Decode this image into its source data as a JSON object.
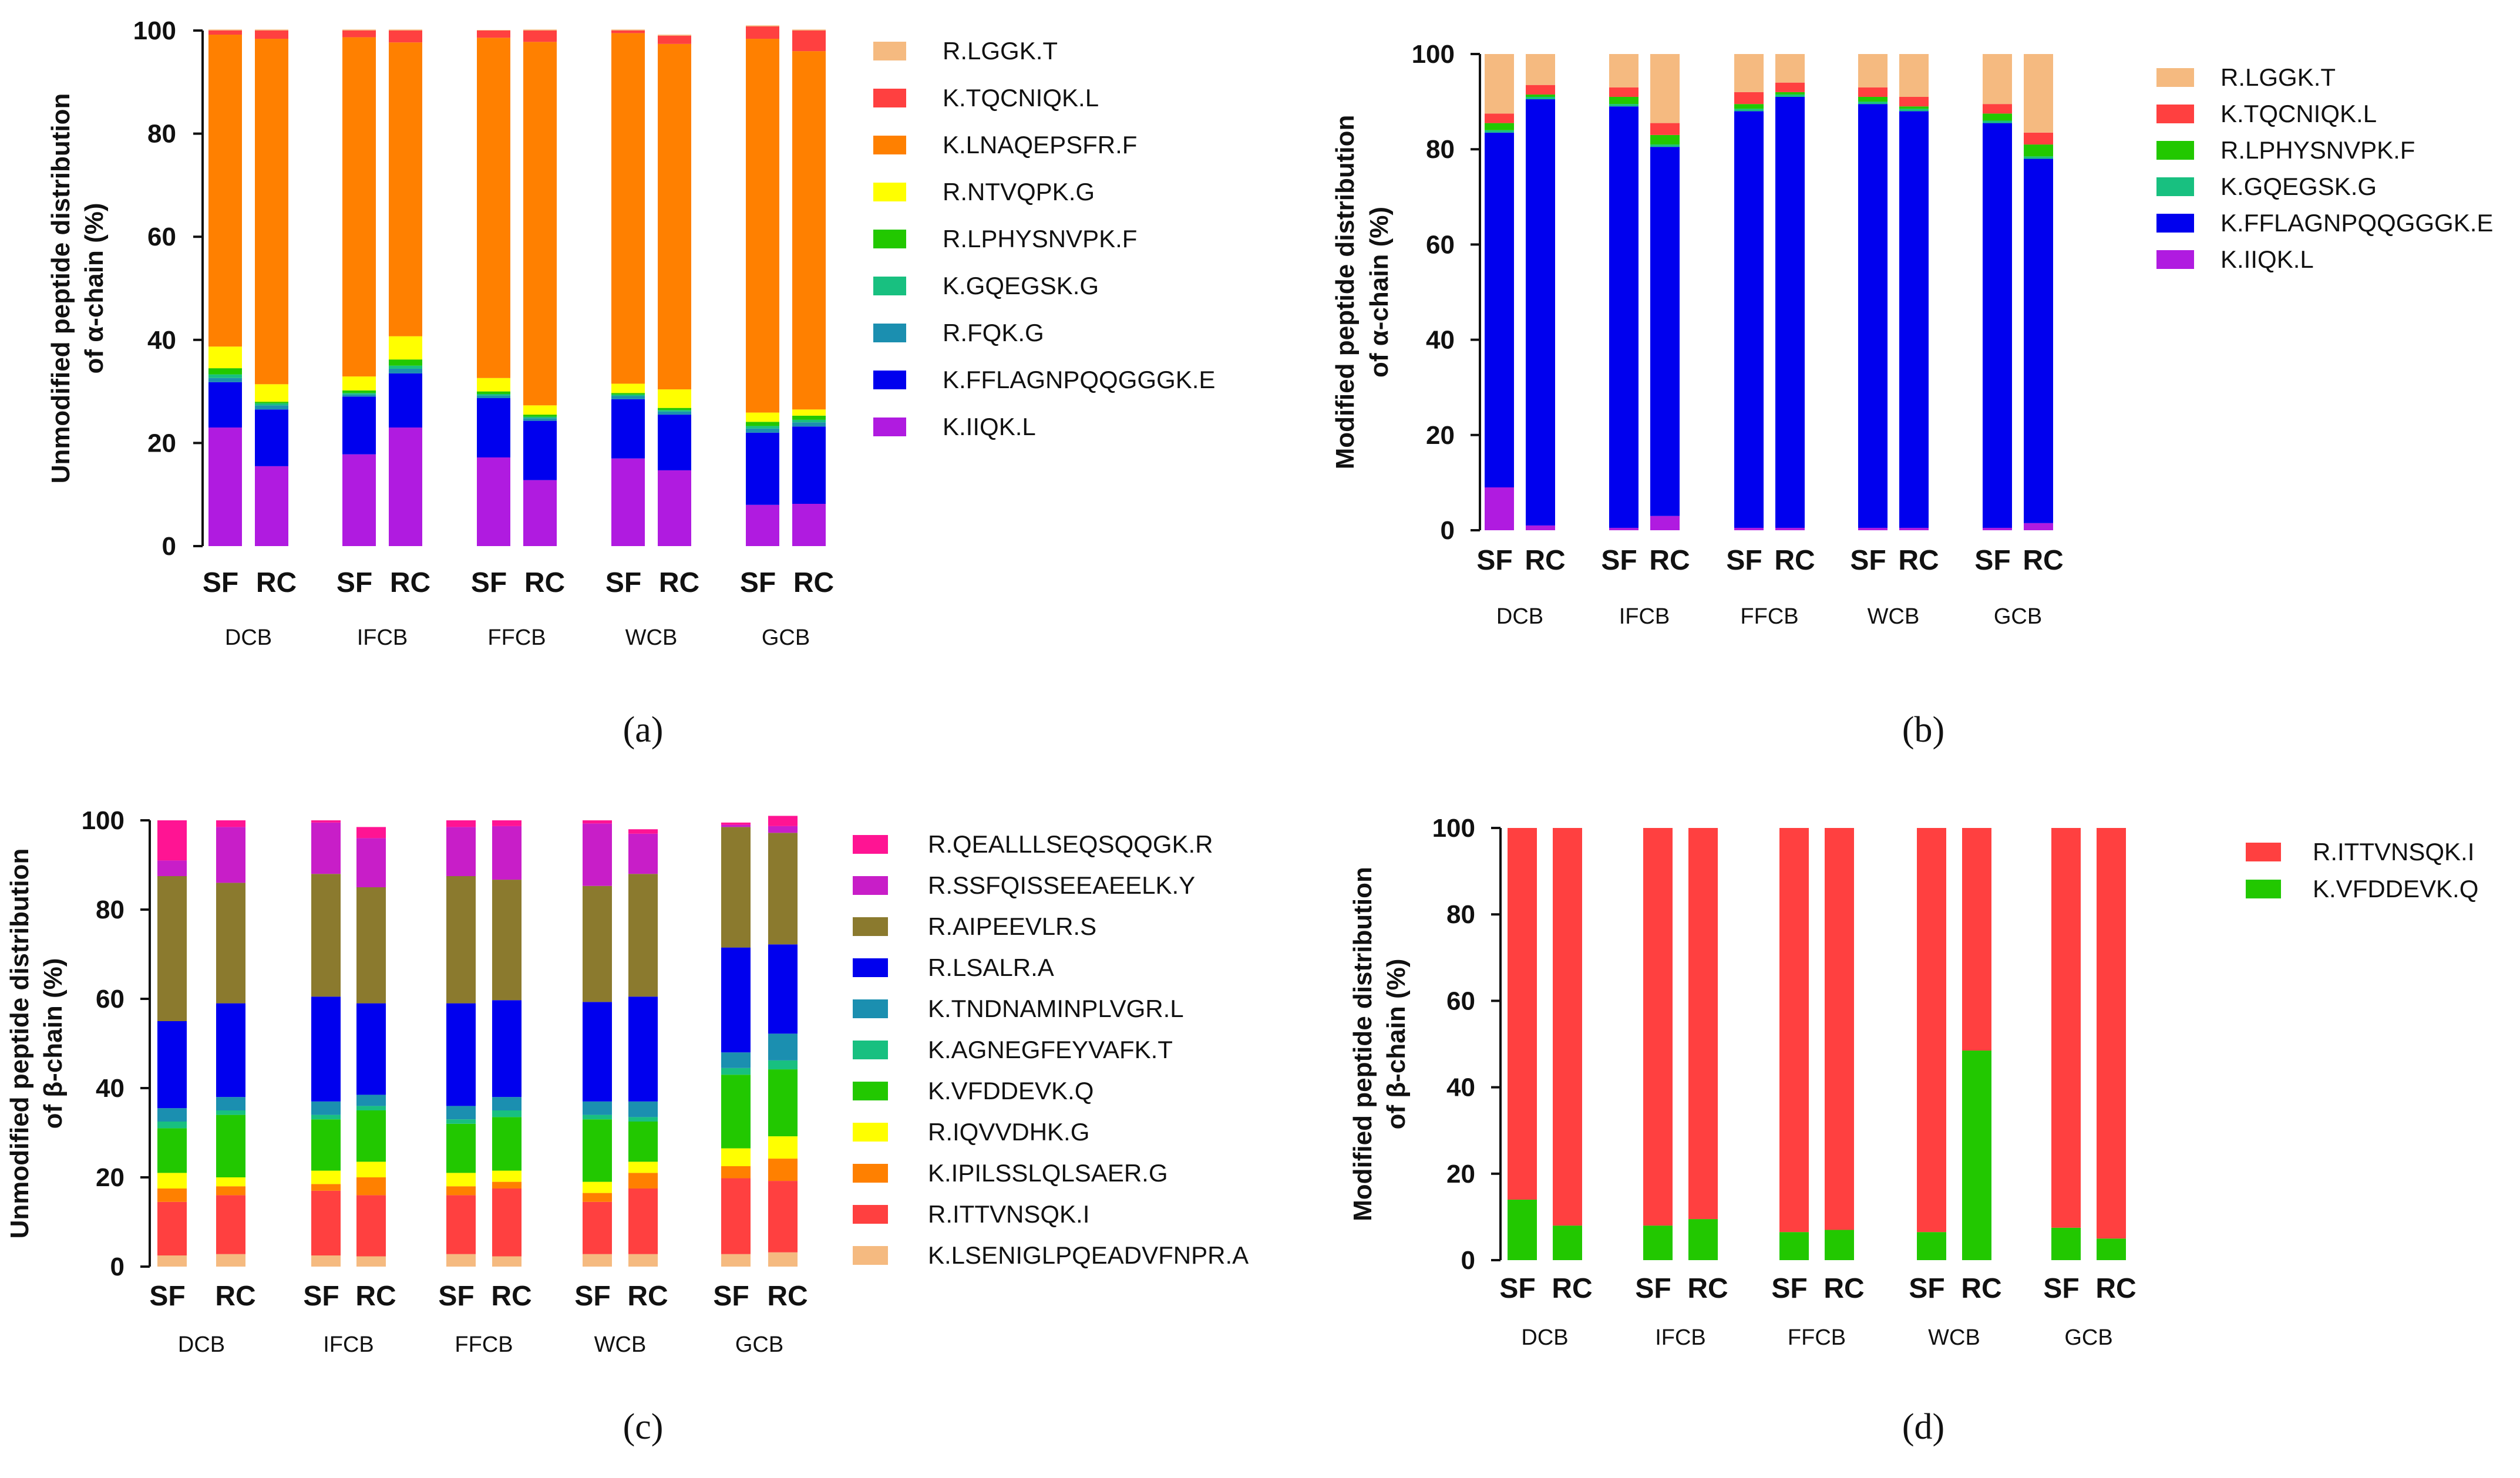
{
  "chart_data": [
    {
      "type": "bar",
      "stacked": true,
      "panel_label": "(a)",
      "ylabel": [
        "Unmodified peptide distribution",
        "of α-chain (%)"
      ],
      "ylim": [
        0,
        100
      ],
      "yticks": [
        "0",
        "20",
        "40",
        "60",
        "80",
        "100"
      ],
      "groups": [
        "DCB",
        "IFCB",
        "FFCB",
        "WCB",
        "GCB"
      ],
      "bars_per_group": [
        "SF",
        "RC"
      ],
      "legend_position": "right",
      "series": [
        {
          "name": "K.IIQK.L",
          "color": "#B01BE0",
          "values": [
            23,
            15.5,
            17.8,
            23,
            17.2,
            12.8,
            17,
            14.7,
            8,
            8.2
          ]
        },
        {
          "name": "K.FFLAGNPQQGGGK.E",
          "color": "#0000EE",
          "values": [
            8.8,
            11,
            11.2,
            10.5,
            11.5,
            11.5,
            11.5,
            10.8,
            14,
            15
          ]
        },
        {
          "name": "R.FQK.G",
          "color": "#1B8FB0",
          "values": [
            0.8,
            0.8,
            0.4,
            0.9,
            0.5,
            0.5,
            0.6,
            0.6,
            0.8,
            0.8
          ]
        },
        {
          "name": "K.GQEGSK.G",
          "color": "#18C080",
          "values": [
            0.7,
            0.4,
            0.3,
            0.6,
            0.3,
            0.3,
            0.3,
            0.3,
            0.5,
            0.5
          ]
        },
        {
          "name": "R.LPHYSNVPK.F",
          "color": "#22C800",
          "values": [
            1.2,
            0.3,
            0.5,
            1.2,
            0.5,
            0.4,
            0.3,
            0.4,
            0.8,
            0.8
          ]
        },
        {
          "name": "R.NTVQPK.G",
          "color": "#FFFF00",
          "values": [
            4.2,
            3.4,
            2.7,
            4.5,
            2.6,
            1.8,
            1.8,
            3.6,
            1.8,
            1.2
          ]
        },
        {
          "name": "K.LNAQEPSFR.F",
          "color": "#FF8000",
          "values": [
            60.5,
            67,
            65.8,
            57,
            66,
            70.5,
            68,
            67,
            72.5,
            69.5
          ]
        },
        {
          "name": "K.TQCNIQK.L",
          "color": "#FF4040",
          "values": [
            0.8,
            1.6,
            1.3,
            2.3,
            1.4,
            2.2,
            0.5,
            1.6,
            2.4,
            4
          ]
        },
        {
          "name": "R.LGGK.T",
          "color": "#F5BA80",
          "values": [
            0.2,
            0.2,
            0.2,
            0.2,
            0.1,
            0.2,
            0.2,
            0.2,
            0.2,
            0.2
          ]
        }
      ]
    },
    {
      "type": "bar",
      "stacked": true,
      "panel_label": "(b)",
      "ylabel": [
        "Modified peptide distribution",
        "of α-chain (%)"
      ],
      "ylim": [
        0,
        100
      ],
      "yticks": [
        "0",
        "20",
        "40",
        "60",
        "80",
        "100"
      ],
      "groups": [
        "DCB",
        "IFCB",
        "FFCB",
        "WCB",
        "GCB"
      ],
      "bars_per_group": [
        "SF",
        "RC"
      ],
      "legend_position": "right",
      "series": [
        {
          "name": "K.IIQK.L",
          "color": "#B01BE0",
          "values": [
            9,
            1,
            0.5,
            3,
            0.5,
            0.5,
            0.5,
            0.5,
            0.5,
            1.5
          ]
        },
        {
          "name": "K.FFLAGNPQQGGGK.E",
          "color": "#0000EE",
          "values": [
            74.5,
            89.5,
            88.5,
            77.5,
            87.5,
            90.5,
            89,
            87.5,
            85,
            76.5
          ]
        },
        {
          "name": "K.GQEGSK.G",
          "color": "#18C080",
          "values": [
            0.5,
            0.5,
            0.5,
            0.5,
            0.5,
            0.5,
            0.5,
            0.5,
            0.5,
            0.5
          ]
        },
        {
          "name": "R.LPHYSNVPK.F",
          "color": "#22C800",
          "values": [
            1.5,
            0.5,
            1.5,
            2,
            1,
            0.5,
            1,
            0.5,
            1.5,
            2.5
          ]
        },
        {
          "name": "K.TQCNIQK.L",
          "color": "#FF4040",
          "values": [
            2,
            2,
            2,
            2.5,
            2.5,
            2,
            2,
            2,
            2,
            2.5
          ]
        },
        {
          "name": "R.LGGK.T",
          "color": "#F5BA80",
          "values": [
            12.5,
            6.5,
            7,
            14.5,
            8,
            6,
            7,
            9,
            10.5,
            16.5
          ]
        }
      ]
    },
    {
      "type": "bar",
      "stacked": true,
      "panel_label": "(c)",
      "ylabel": [
        "Unmodified peptide distribution",
        "of β-chain (%)"
      ],
      "ylim": [
        0,
        100
      ],
      "yticks": [
        "0",
        "20",
        "40",
        "60",
        "80",
        "100"
      ],
      "groups": [
        "DCB",
        "IFCB",
        "FFCB",
        "WCB",
        "GCB"
      ],
      "bars_per_group": [
        "SF",
        "RC"
      ],
      "legend_position": "right",
      "series": [
        {
          "name": "K.LSENIGLPQEADVFNPR.A",
          "color": "#F5BA80",
          "values": [
            2.5,
            2.8,
            2.5,
            2.3,
            2.8,
            2.3,
            2.8,
            2.8,
            2.8,
            3.2
          ]
        },
        {
          "name": "R.ITTVNSQK.I",
          "color": "#FF4040",
          "values": [
            12,
            13.2,
            14.5,
            13.7,
            13.2,
            15.2,
            11.7,
            14.7,
            17,
            16
          ]
        },
        {
          "name": "K.IPILSSLQLSAER.G",
          "color": "#FF8000",
          "values": [
            3,
            2,
            1.5,
            4,
            2,
            1.5,
            2,
            3.5,
            2.7,
            5
          ]
        },
        {
          "name": "R.IQVVDHK.G",
          "color": "#FFFF00",
          "values": [
            3.5,
            2,
            3,
            3.5,
            3,
            2.5,
            2.5,
            2.5,
            4,
            5
          ]
        },
        {
          "name": "K.VFDDEVK.Q",
          "color": "#22C800",
          "values": [
            10,
            14,
            11.5,
            11.5,
            11,
            12,
            14,
            9,
            16.5,
            15
          ]
        },
        {
          "name": "K.AGNEGFEYVAFK.T",
          "color": "#18C080",
          "values": [
            1.5,
            1,
            1,
            1,
            1,
            1.5,
            1,
            1,
            1.5,
            2
          ]
        },
        {
          "name": "K.TNDNAMINPLVGR.L",
          "color": "#1B8FB0",
          "values": [
            3,
            3,
            3,
            2.5,
            3,
            3,
            3,
            3.5,
            3.5,
            6
          ]
        },
        {
          "name": "R.LSALR.A",
          "color": "#0000EE",
          "values": [
            19.5,
            21,
            23.5,
            20.5,
            23,
            21.7,
            22.3,
            23.5,
            23.5,
            20
          ]
        },
        {
          "name": "R.AIPEEVLR.S",
          "color": "#8B7A2E",
          "values": [
            32.5,
            27,
            27.5,
            26,
            28.5,
            27,
            26,
            27.5,
            27,
            25
          ]
        },
        {
          "name": "R.SSFQISSEEAEELK.Y",
          "color": "#C81EC8",
          "values": [
            3.5,
            12.5,
            11.5,
            11,
            11,
            12,
            14,
            9,
            0.5,
            1.5
          ]
        },
        {
          "name": "R.QEALLLSEQSQQGK.R",
          "color": "#FF1493",
          "values": [
            9,
            1.5,
            0.5,
            2.5,
            1.5,
            1.3,
            0.7,
            1,
            0.5,
            2.3
          ]
        }
      ]
    },
    {
      "type": "bar",
      "stacked": true,
      "panel_label": "(d)",
      "ylabel": [
        "Modified peptide distribution",
        "of β-chain (%)"
      ],
      "ylim": [
        0,
        100
      ],
      "yticks": [
        "0",
        "20",
        "40",
        "60",
        "80",
        "100"
      ],
      "groups": [
        "DCB",
        "IFCB",
        "FFCB",
        "WCB",
        "GCB"
      ],
      "bars_per_group": [
        "SF",
        "RC"
      ],
      "legend_position": "right",
      "series": [
        {
          "name": "K.VFDDEVK.Q",
          "color": "#22C800",
          "values": [
            14,
            8,
            8,
            9.5,
            6.5,
            7,
            6.5,
            48.5,
            7.5,
            5
          ]
        },
        {
          "name": "R.ITTVNSQK.I",
          "color": "#FF4040",
          "values": [
            86,
            92,
            92,
            90.5,
            93.5,
            93,
            93.5,
            51.5,
            92.5,
            95
          ]
        }
      ]
    }
  ]
}
